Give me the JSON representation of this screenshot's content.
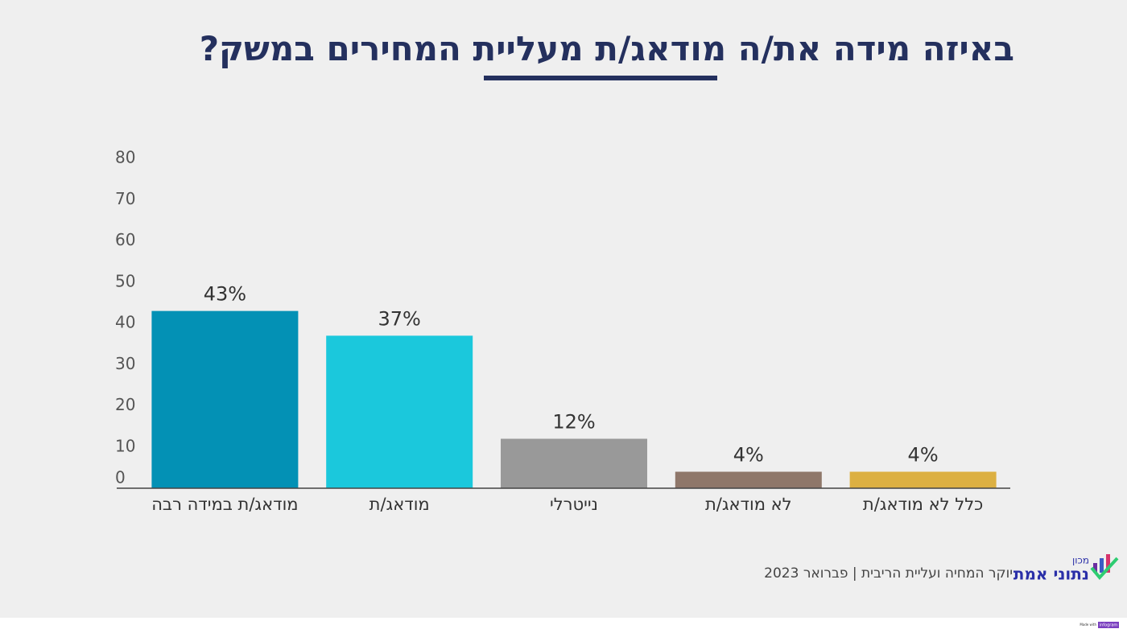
{
  "chart_data": {
    "type": "bar",
    "title": "באיזה מידה את/ה מודאג/ת מעליית המחירים במשק?",
    "categories": [
      "מודאג/ת במידה רבה",
      "מודאג/ת",
      "נייטרלי",
      "לא מודאג/ת",
      "כלל לא מודאג/ת"
    ],
    "values": [
      43,
      37,
      12,
      4,
      4
    ],
    "value_labels": [
      "43%",
      "37%",
      "12%",
      "4%",
      "4%"
    ],
    "colors": [
      "#0391b5",
      "#1bc8dc",
      "#999999",
      "#8f776a",
      "#dcb042"
    ],
    "ylim": [
      0,
      80
    ],
    "yticks": [
      0,
      10,
      20,
      30,
      40,
      50,
      60,
      70,
      80
    ],
    "grid": false
  },
  "footer": {
    "source": "יוקר המחיה ועליית הריבית | פברואר 2023",
    "logo_small": "מכון",
    "logo_main": "נתוני אמת",
    "badge_prefix": "Made with",
    "badge_brand": "infogram"
  }
}
